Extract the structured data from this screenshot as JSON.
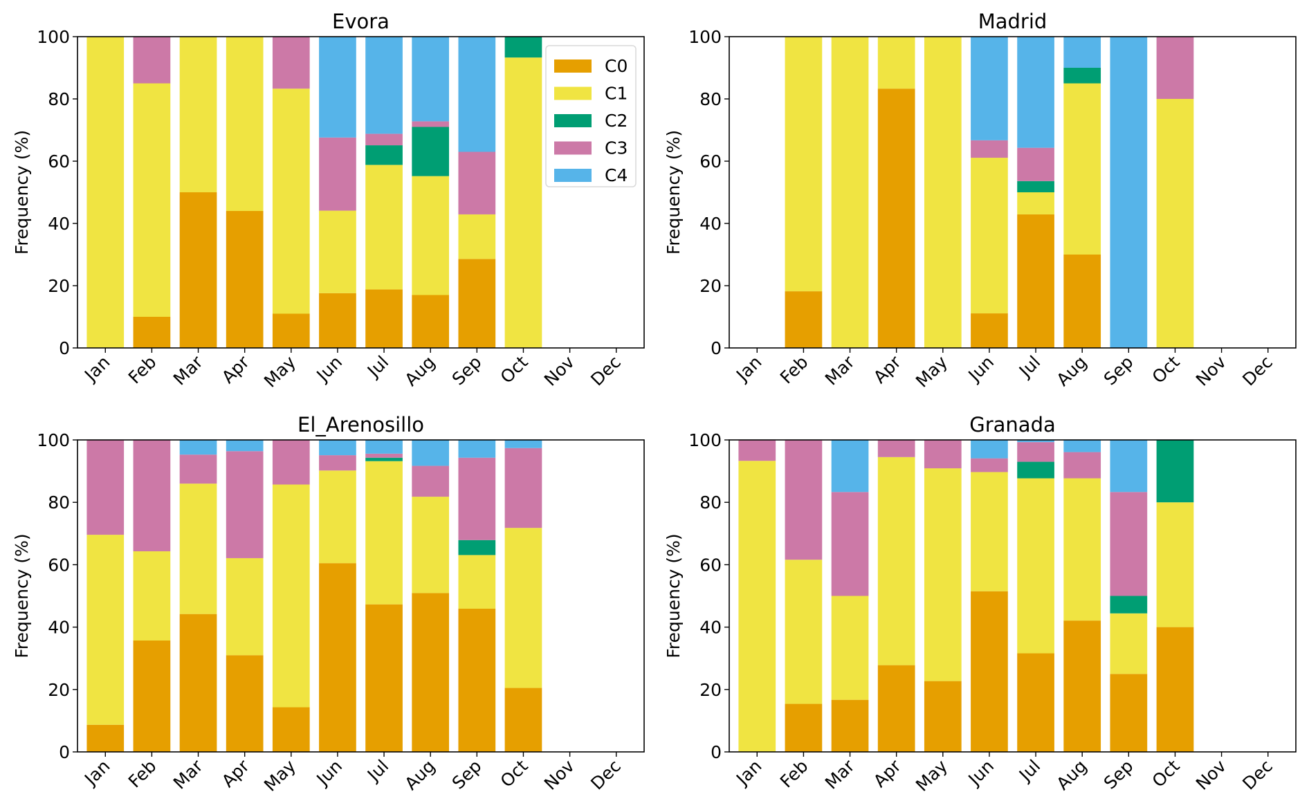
{
  "chart_data": [
    {
      "type": "bar",
      "stacked": true,
      "title": "Evora",
      "xlabel": "",
      "ylabel": "Frequency (%)",
      "ylim": [
        0,
        100
      ],
      "yticks": [
        "0",
        "20",
        "40",
        "60",
        "80",
        "100"
      ],
      "categories": [
        "Jan",
        "Feb",
        "Mar",
        "Apr",
        "May",
        "Jun",
        "Jul",
        "Aug",
        "Sep",
        "Oct",
        "Nov",
        "Dec"
      ],
      "legend": {
        "placement": "top-right",
        "entries": [
          "C0",
          "C1",
          "C2",
          "C3",
          "C4"
        ]
      },
      "series": [
        {
          "name": "C0",
          "values": [
            0,
            10,
            50,
            44,
            11,
            17.6,
            18.8,
            17,
            28.6,
            0,
            0,
            0
          ]
        },
        {
          "name": "C1",
          "values": [
            100,
            75,
            50,
            56,
            72.3,
            26.5,
            40,
            38.2,
            14.3,
            93.3,
            0,
            0
          ]
        },
        {
          "name": "C2",
          "values": [
            0,
            0,
            0,
            0,
            0,
            0,
            6.3,
            15.8,
            0,
            6.7,
            0,
            0
          ]
        },
        {
          "name": "C3",
          "values": [
            0,
            15,
            0,
            0,
            16.7,
            23.5,
            3.7,
            1.8,
            20.1,
            0,
            0,
            0
          ]
        },
        {
          "name": "C4",
          "values": [
            0,
            0,
            0,
            0,
            0,
            32.4,
            31.2,
            27.2,
            37,
            0,
            0,
            0
          ]
        }
      ]
    },
    {
      "type": "bar",
      "stacked": true,
      "title": "Madrid",
      "xlabel": "",
      "ylabel": "Frequency (%)",
      "ylim": [
        0,
        100
      ],
      "yticks": [
        "0",
        "20",
        "40",
        "60",
        "80",
        "100"
      ],
      "categories": [
        "Jan",
        "Feb",
        "Mar",
        "Apr",
        "May",
        "Jun",
        "Jul",
        "Aug",
        "Sep",
        "Oct",
        "Nov",
        "Dec"
      ],
      "series": [
        {
          "name": "C0",
          "values": [
            0,
            18.2,
            0,
            83.3,
            0,
            11.1,
            42.9,
            30,
            0,
            0,
            0,
            0
          ]
        },
        {
          "name": "C1",
          "values": [
            0,
            81.8,
            100,
            16.7,
            100,
            50,
            7.1,
            55,
            0,
            80,
            0,
            0
          ]
        },
        {
          "name": "C2",
          "values": [
            0,
            0,
            0,
            0,
            0,
            0,
            3.6,
            5,
            0,
            0,
            0,
            0
          ]
        },
        {
          "name": "C3",
          "values": [
            0,
            0,
            0,
            0,
            0,
            5.6,
            10.7,
            0,
            0,
            20,
            0,
            0
          ]
        },
        {
          "name": "C4",
          "values": [
            0,
            0,
            0,
            0,
            0,
            33.3,
            35.7,
            10,
            100,
            0,
            0,
            0
          ]
        }
      ]
    },
    {
      "type": "bar",
      "stacked": true,
      "title": "El_Arenosillo",
      "xlabel": "",
      "ylabel": "Frequency (%)",
      "ylim": [
        0,
        100
      ],
      "yticks": [
        "0",
        "20",
        "40",
        "60",
        "80",
        "100"
      ],
      "categories": [
        "Jan",
        "Feb",
        "Mar",
        "Apr",
        "May",
        "Jun",
        "Jul",
        "Aug",
        "Sep",
        "Oct",
        "Nov",
        "Dec"
      ],
      "series": [
        {
          "name": "C0",
          "values": [
            8.7,
            35.7,
            44.2,
            31,
            14.3,
            60.5,
            47.3,
            50.9,
            45.9,
            20.5,
            0,
            0
          ]
        },
        {
          "name": "C1",
          "values": [
            60.9,
            28.6,
            41.8,
            31.1,
            71.4,
            29.7,
            45.9,
            30.9,
            17.2,
            51.3,
            0,
            0
          ]
        },
        {
          "name": "C2",
          "values": [
            0,
            0,
            0,
            0,
            0,
            0,
            1.1,
            0,
            4.8,
            0,
            0,
            0
          ]
        },
        {
          "name": "C3",
          "values": [
            30.4,
            35.7,
            9.3,
            34.3,
            14.3,
            4.9,
            1.3,
            9.9,
            26.4,
            25.6,
            0,
            0
          ]
        },
        {
          "name": "C4",
          "values": [
            0,
            0,
            4.7,
            3.6,
            0,
            4.9,
            4.4,
            8.3,
            5.7,
            2.6,
            0,
            0
          ]
        }
      ]
    },
    {
      "type": "bar",
      "stacked": true,
      "title": "Granada",
      "xlabel": "",
      "ylabel": "Frequency (%)",
      "ylim": [
        0,
        100
      ],
      "yticks": [
        "0",
        "20",
        "40",
        "60",
        "80",
        "100"
      ],
      "categories": [
        "Jan",
        "Feb",
        "Mar",
        "Apr",
        "May",
        "Jun",
        "Jul",
        "Aug",
        "Sep",
        "Oct",
        "Nov",
        "Dec"
      ],
      "series": [
        {
          "name": "C0",
          "values": [
            0,
            15.4,
            16.7,
            27.8,
            22.7,
            51.5,
            31.6,
            42.1,
            25,
            40,
            0,
            0
          ]
        },
        {
          "name": "C1",
          "values": [
            93.3,
            46.2,
            33.3,
            66.7,
            68.2,
            38.2,
            56.1,
            45.6,
            19.4,
            40,
            0,
            0
          ]
        },
        {
          "name": "C2",
          "values": [
            0,
            0,
            0,
            0,
            0,
            0,
            5.3,
            0,
            5.6,
            20,
            0,
            0
          ]
        },
        {
          "name": "C3",
          "values": [
            6.7,
            38.4,
            33.3,
            5.5,
            9.1,
            4.4,
            6.3,
            8.4,
            33.3,
            0,
            0,
            0
          ]
        },
        {
          "name": "C4",
          "values": [
            0,
            0,
            16.7,
            0,
            0,
            5.9,
            0.7,
            3.9,
            16.7,
            0,
            0,
            0
          ]
        }
      ]
    }
  ],
  "colors": {
    "C0": "#e69f00",
    "C1": "#f0e442",
    "C2": "#009e73",
    "C3": "#cc79a7",
    "C4": "#56b4e9",
    "axis": "#000000"
  }
}
